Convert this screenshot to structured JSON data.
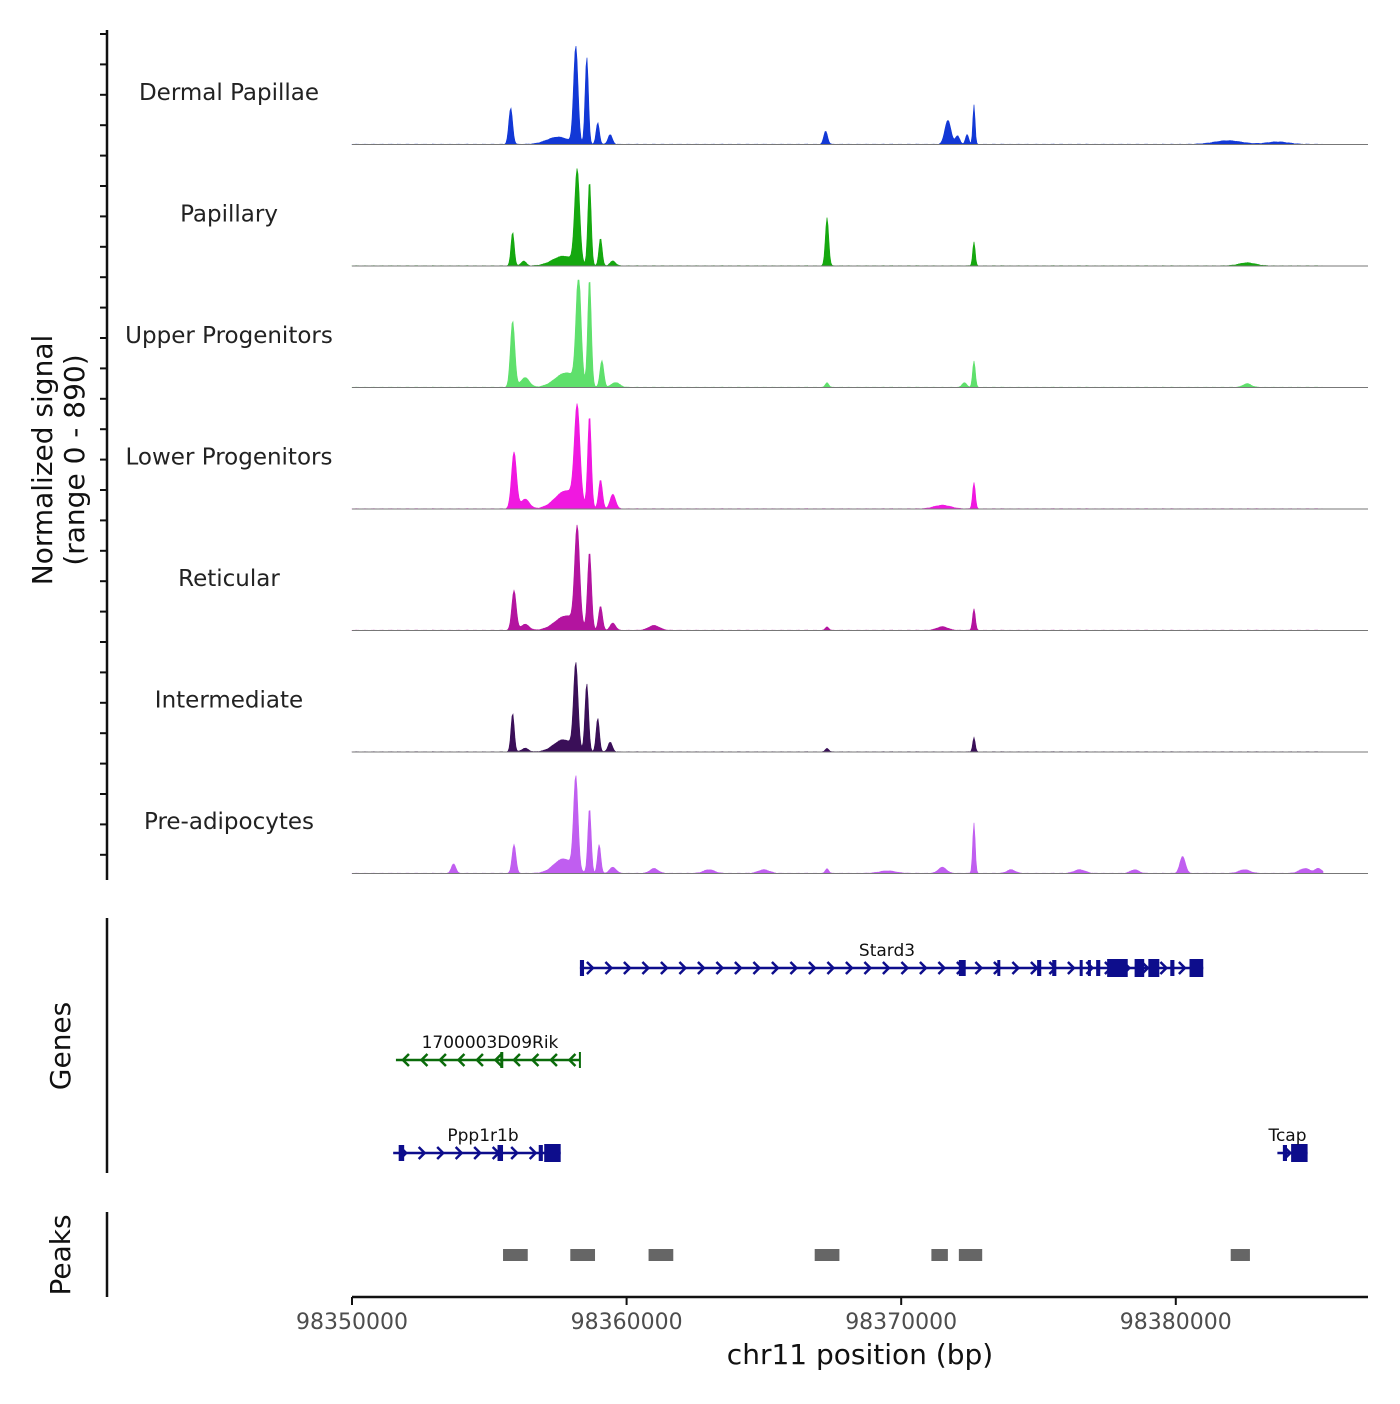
{
  "chart_data": {
    "type": "area",
    "title": "",
    "xlabel": "chr11 position (bp)",
    "ylabel_line1": "Normalized signal",
    "ylabel_line2": "(range 0 - 890)",
    "xlim": [
      98350000,
      98387000
    ],
    "ylim": [
      0,
      890
    ],
    "x_ticks": [
      98350000,
      98360000,
      98370000,
      98380000
    ],
    "x_tick_labels": [
      "98350000",
      "98360000",
      "98370000",
      "98380000"
    ],
    "tracks": [
      {
        "name": "Dermal Papillae",
        "color": "#1238d6",
        "peaks": [
          [
            98355780,
            300,
            70
          ],
          [
            98357500,
            60,
            400
          ],
          [
            98358150,
            800,
            80
          ],
          [
            98358550,
            720,
            60
          ],
          [
            98358950,
            180,
            60
          ],
          [
            98359400,
            80,
            80
          ],
          [
            98367250,
            110,
            70
          ],
          [
            98371700,
            200,
            110
          ],
          [
            98372050,
            70,
            80
          ],
          [
            98372650,
            330,
            40
          ],
          [
            98372400,
            80,
            60
          ],
          [
            98381900,
            30,
            500
          ],
          [
            98383700,
            20,
            400
          ]
        ]
      },
      {
        "name": "Papillary",
        "color": "#15a80f",
        "peaks": [
          [
            98355850,
            280,
            60
          ],
          [
            98356250,
            40,
            90
          ],
          [
            98357700,
            80,
            400
          ],
          [
            98358200,
            770,
            90
          ],
          [
            98358650,
            700,
            60
          ],
          [
            98359050,
            230,
            60
          ],
          [
            98359500,
            40,
            100
          ],
          [
            98367300,
            400,
            60
          ],
          [
            98372650,
            200,
            45
          ],
          [
            98382600,
            25,
            300
          ]
        ]
      },
      {
        "name": "Upper Progenitors",
        "color": "#5fe06c",
        "peaks": [
          [
            98355850,
            550,
            80
          ],
          [
            98356300,
            80,
            160
          ],
          [
            98357800,
            120,
            400
          ],
          [
            98358250,
            890,
            90
          ],
          [
            98358650,
            890,
            65
          ],
          [
            98359100,
            220,
            70
          ],
          [
            98359600,
            40,
            150
          ],
          [
            98367300,
            40,
            60
          ],
          [
            98372650,
            220,
            50
          ],
          [
            98372300,
            40,
            80
          ],
          [
            98382600,
            30,
            150
          ]
        ]
      },
      {
        "name": "Lower Progenitors",
        "color": "#f018e0",
        "peaks": [
          [
            98355900,
            470,
            90
          ],
          [
            98356300,
            80,
            160
          ],
          [
            98357800,
            150,
            400
          ],
          [
            98358200,
            780,
            100
          ],
          [
            98358650,
            760,
            65
          ],
          [
            98359050,
            240,
            70
          ],
          [
            98359500,
            120,
            100
          ],
          [
            98371500,
            30,
            300
          ],
          [
            98372650,
            220,
            50
          ]
        ]
      },
      {
        "name": "Reticular",
        "color": "#b3149f",
        "peaks": [
          [
            98355900,
            330,
            80
          ],
          [
            98356300,
            50,
            150
          ],
          [
            98357800,
            120,
            400
          ],
          [
            98358200,
            800,
            90
          ],
          [
            98358650,
            640,
            70
          ],
          [
            98359050,
            200,
            70
          ],
          [
            98359500,
            60,
            100
          ],
          [
            98361000,
            40,
            200
          ],
          [
            98367300,
            30,
            60
          ],
          [
            98371500,
            30,
            200
          ],
          [
            98372650,
            180,
            50
          ]
        ]
      },
      {
        "name": "Intermediate",
        "color": "#3a0f58",
        "peaks": [
          [
            98355850,
            320,
            60
          ],
          [
            98356300,
            30,
            120
          ],
          [
            98357700,
            100,
            350
          ],
          [
            98358150,
            700,
            80
          ],
          [
            98358550,
            560,
            65
          ],
          [
            98358950,
            280,
            60
          ],
          [
            98359400,
            80,
            80
          ],
          [
            98367300,
            30,
            60
          ],
          [
            98372650,
            120,
            45
          ]
        ]
      },
      {
        "name": "Pre-adipocytes",
        "color": "#c05ef0",
        "peaks": [
          [
            98353700,
            80,
            80
          ],
          [
            98355900,
            240,
            70
          ],
          [
            98357700,
            120,
            350
          ],
          [
            98358150,
            760,
            80
          ],
          [
            98358650,
            540,
            60
          ],
          [
            98359000,
            240,
            60
          ],
          [
            98359500,
            50,
            120
          ],
          [
            98361000,
            40,
            150
          ],
          [
            98363000,
            30,
            200
          ],
          [
            98365000,
            30,
            200
          ],
          [
            98367300,
            40,
            60
          ],
          [
            98369500,
            20,
            300
          ],
          [
            98371500,
            50,
            150
          ],
          [
            98372650,
            420,
            45
          ],
          [
            98374000,
            30,
            150
          ],
          [
            98376500,
            30,
            200
          ],
          [
            98378500,
            30,
            150
          ],
          [
            98380250,
            140,
            100
          ],
          [
            98382500,
            30,
            200
          ],
          [
            98384700,
            40,
            200
          ],
          [
            98385200,
            40,
            120
          ]
        ]
      }
    ],
    "genes": [
      {
        "name": "Stard3",
        "color": "#0d0d8c",
        "strand": "+",
        "start": 98358300,
        "end": 98381000,
        "row": 0,
        "exons": [
          [
            98358300,
            98358450
          ],
          [
            98372100,
            98372350
          ],
          [
            98373500,
            98373600
          ],
          [
            98374950,
            98375100
          ],
          [
            98375500,
            98375650
          ],
          [
            98376500,
            98376600
          ],
          [
            98376800,
            98376900
          ],
          [
            98377100,
            98377250
          ],
          [
            98377500,
            98378250
          ],
          [
            98378500,
            98378850
          ],
          [
            98379000,
            98379400
          ],
          [
            98379800,
            98379950
          ],
          [
            98380500,
            98381000
          ]
        ]
      },
      {
        "name": "1700003D09Rik",
        "color": "#0a6b0a",
        "strand": "-",
        "start": 98351600,
        "end": 98358300,
        "row": 1,
        "exons": [
          [
            98355400,
            98355480
          ]
        ]
      },
      {
        "name": "Ppp1r1b",
        "color": "#0d0d8c",
        "strand": "+",
        "start": 98351500,
        "end": 98357600,
        "row": 2,
        "exons": [
          [
            98351700,
            98351900
          ],
          [
            98355300,
            98355500
          ],
          [
            98356800,
            98356950
          ],
          [
            98357000,
            98357600
          ]
        ]
      },
      {
        "name": "Tcap",
        "color": "#0d0d8c",
        "strand": "+",
        "start": 98383700,
        "end": 98384800,
        "row": 2,
        "exons": [
          [
            98383900,
            98384050
          ],
          [
            98384200,
            98384800
          ]
        ]
      }
    ],
    "peaks_track": {
      "label": "Peaks",
      "color": "#666666",
      "regions": [
        [
          98355500,
          98356400
        ],
        [
          98357950,
          98358850
        ],
        [
          98360800,
          98361700
        ],
        [
          98366850,
          98367750
        ],
        [
          98371100,
          98371700
        ],
        [
          98372100,
          98372950
        ],
        [
          98382000,
          98382700
        ]
      ]
    },
    "panel_labels": {
      "genes": "Genes",
      "peaks": "Peaks"
    }
  }
}
